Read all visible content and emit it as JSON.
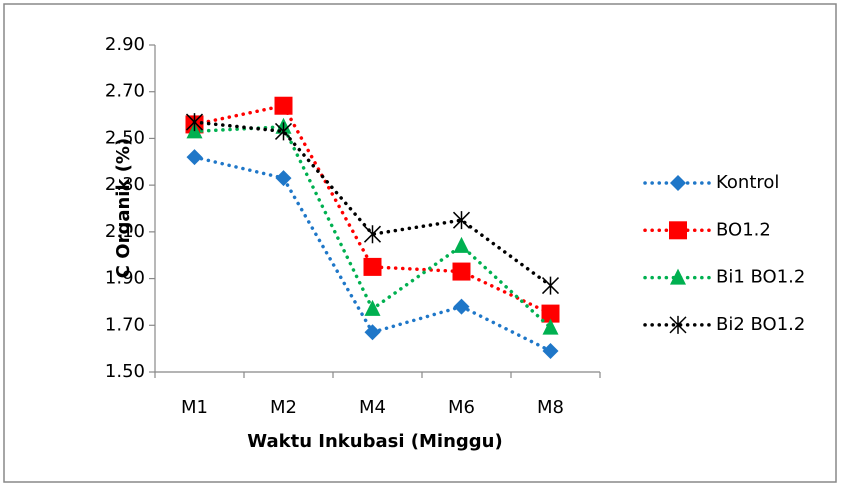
{
  "chart_data": {
    "type": "line",
    "x_label": "Waktu Inkubasi (Minggu)",
    "y_label": "C Organik (%)",
    "categories": [
      "M1",
      "M2",
      "M4",
      "M6",
      "M8"
    ],
    "series": [
      {
        "name": "Kontrol",
        "color": "#1f77c8",
        "marker": "diamond",
        "values": [
          2.42,
          2.33,
          1.67,
          1.78,
          1.59
        ]
      },
      {
        "name": "BO1.2",
        "color": "#ff0000",
        "marker": "square",
        "values": [
          2.56,
          2.64,
          1.95,
          1.93,
          1.75
        ]
      },
      {
        "name": "Bi1 BO1.2",
        "color": "#00b050",
        "marker": "triangle",
        "values": [
          2.53,
          2.55,
          1.77,
          2.04,
          1.69
        ]
      },
      {
        "name": "Bi2 BO1.2",
        "color": "#000000",
        "marker": "star",
        "values": [
          2.57,
          2.53,
          2.09,
          2.15,
          1.87
        ]
      }
    ],
    "ylim": [
      1.5,
      2.9
    ],
    "yticks": [
      {
        "value": 1.5,
        "label": "1.50"
      },
      {
        "value": 1.7,
        "label": "1.70"
      },
      {
        "value": 1.9,
        "label": "1.90"
      },
      {
        "value": 2.1,
        "label": "2.10"
      },
      {
        "value": 2.3,
        "label": "2.30"
      },
      {
        "value": 2.5,
        "label": "2.50"
      },
      {
        "value": 2.7,
        "label": "2.70"
      },
      {
        "value": 2.9,
        "label": "2.90"
      }
    ],
    "legend": "right"
  }
}
